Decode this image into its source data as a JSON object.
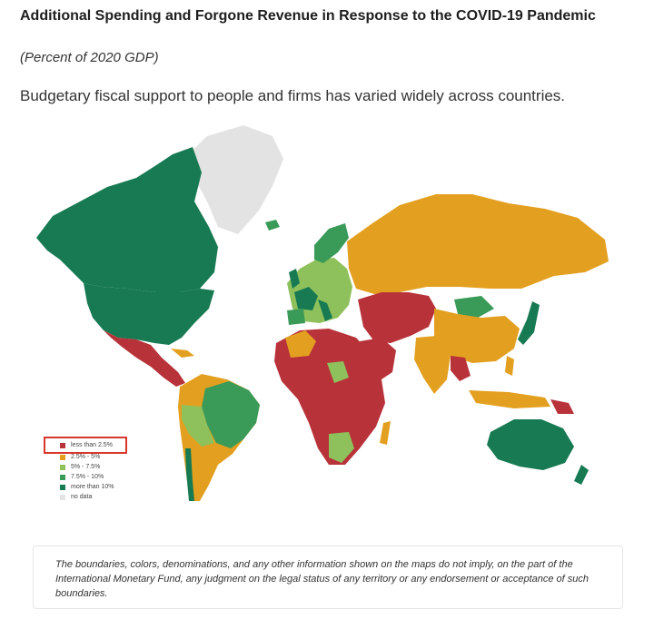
{
  "header": {
    "title": "Additional Spending and Forgone Revenue in Response to the COVID-19 Pandemic",
    "subtitle": "(Percent of 2020 GDP)",
    "description": "Budgetary fiscal support to people and firms has varied widely across countries."
  },
  "legend": {
    "items": [
      {
        "label": "less than 2.5%",
        "color": "#b8323a",
        "highlighted": true
      },
      {
        "label": "2.5% - 5%",
        "color": "#e3a020",
        "highlighted": false
      },
      {
        "label": "5% - 7.5%",
        "color": "#8ec15b",
        "highlighted": false
      },
      {
        "label": "7.5% - 10%",
        "color": "#3a9a58",
        "highlighted": false
      },
      {
        "label": "more than 10%",
        "color": "#177a52",
        "highlighted": false
      },
      {
        "label": "no data",
        "color": "#e3e3e3",
        "highlighted": false
      }
    ]
  },
  "disclaimer": {
    "text": "The boundaries, colors, denominations, and any other information shown on the maps do not imply, on the part of the International Monetary Fund, any judgment on the legal status of any territory or any endorsement or acceptance of such boundaries."
  },
  "colors": {
    "low": "#b8323a",
    "mid_low": "#e3a020",
    "mid": "#8ec15b",
    "mid_high": "#3a9a58",
    "high": "#177a52",
    "no_data": "#e3e3e3",
    "highlight": "#d9372b"
  }
}
